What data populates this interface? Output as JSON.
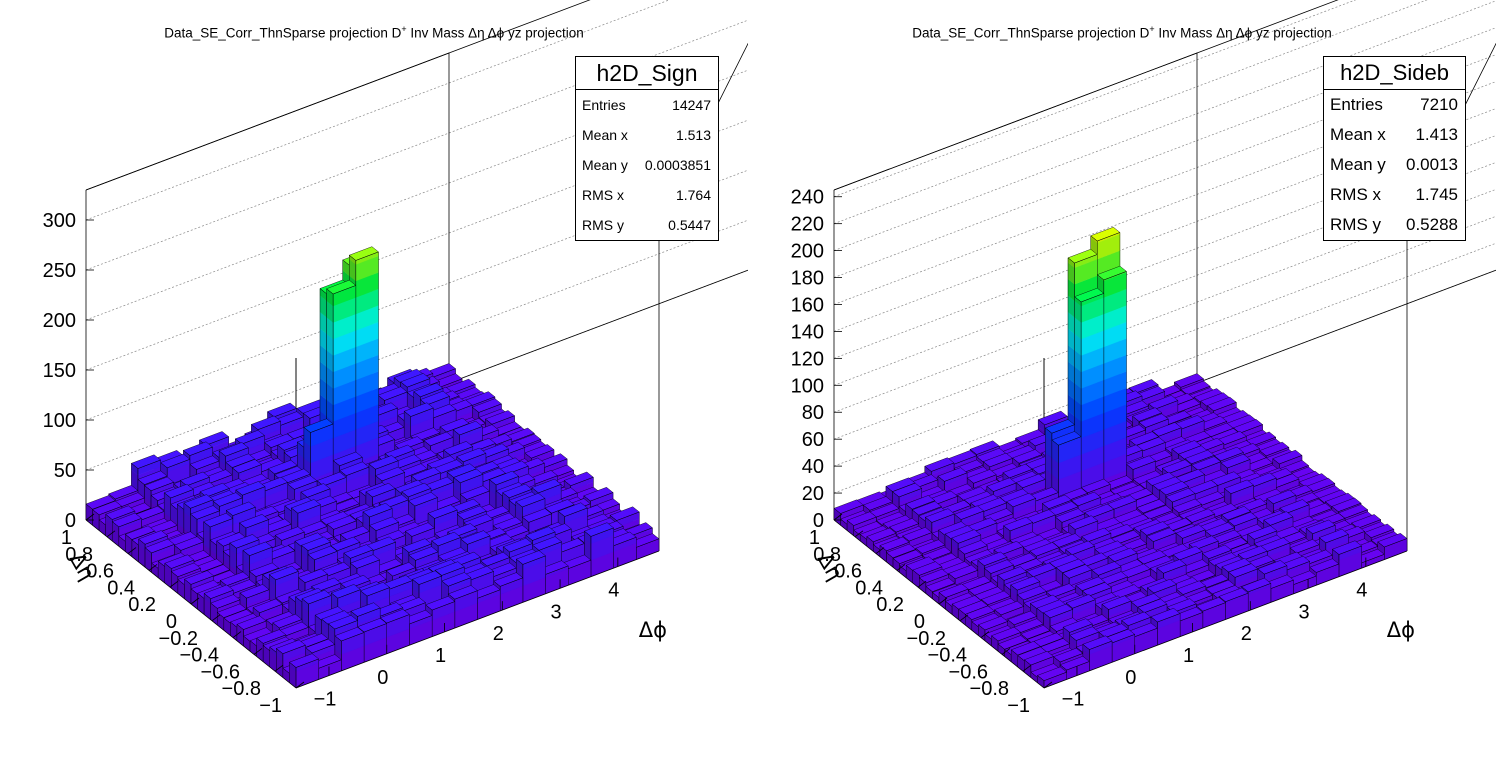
{
  "panels": [
    {
      "title_main": "Data_SE_Corr_ThnSparse projection  D",
      "title_sup": "+",
      "title_rest": " Inv Mass Δη Δϕ yz projection",
      "stats": {
        "name": "h2D_Sign",
        "rows": [
          {
            "label": "Entries",
            "value": "14247"
          },
          {
            "label": "Mean x",
            "value": "1.513"
          },
          {
            "label": "Mean y",
            "value": "0.0003851"
          },
          {
            "label": "RMS x",
            "value": "1.764"
          },
          {
            "label": "RMS y",
            "value": "0.5447"
          }
        ]
      }
    },
    {
      "title_main": "Data_SE_Corr_ThnSparse projection  D",
      "title_sup": "+",
      "title_rest": " Inv Mass Δη Δϕ yz projection",
      "stats": {
        "name": "h2D_Sideb",
        "rows": [
          {
            "label": "Entries",
            "value": "7210"
          },
          {
            "label": "Mean x",
            "value": "1.413"
          },
          {
            "label": "Mean y",
            "value": "0.0013"
          },
          {
            "label": "RMS x",
            "value": "1.745"
          },
          {
            "label": "RMS y",
            "value": "0.5288"
          }
        ]
      }
    }
  ],
  "chart_data": [
    {
      "type": "heatmap",
      "subtype": "lego",
      "title": "Data_SE_Corr_ThnSparse projection  D+ Inv Mass Δη Δϕ yz projection",
      "xlabel": "Δϕ",
      "ylabel": "Δη",
      "xlim": [
        -1.5708,
        4.7124
      ],
      "ylim": [
        -1,
        1
      ],
      "zlim": [
        0,
        330
      ],
      "z_ticks": [
        0,
        50,
        100,
        150,
        200,
        250,
        300
      ],
      "x_ticks": [
        -1,
        0,
        1,
        2,
        3,
        4
      ],
      "y_ticks": [
        -1,
        -0.8,
        -0.6,
        -0.4,
        -0.2,
        0,
        0.2,
        0.4,
        0.6,
        0.8,
        1
      ],
      "nx": 32,
      "ny": 16,
      "baseline": 30,
      "peak": {
        "x_center": 0.05,
        "y_center": 0.0,
        "values": [
          [
            0,
            0,
            205
          ],
          [
            0,
            1,
            225
          ],
          [
            1,
            0,
            210
          ],
          [
            1,
            1,
            235
          ],
          [
            0,
            -1,
            60
          ],
          [
            1,
            -1,
            80
          ],
          [
            -1,
            0,
            60
          ],
          [
            -1,
            1,
            50
          ]
        ]
      },
      "palette": "rainbow"
    },
    {
      "type": "heatmap",
      "subtype": "lego",
      "title": "Data_SE_Corr_ThnSparse projection  D+ Inv Mass Δη Δϕ yz projection",
      "xlabel": "Δϕ",
      "ylabel": "Δη",
      "xlim": [
        -1.5708,
        4.7124
      ],
      "ylim": [
        -1,
        1
      ],
      "zlim": [
        0,
        245
      ],
      "z_ticks": [
        0,
        20,
        40,
        60,
        80,
        100,
        120,
        140,
        160,
        180,
        200,
        220,
        240
      ],
      "x_ticks": [
        -1,
        0,
        1,
        2,
        3,
        4
      ],
      "y_ticks": [
        -1,
        -0.8,
        -0.6,
        -0.4,
        -0.2,
        0,
        0.2,
        0.4,
        0.6,
        0.8,
        1
      ],
      "nx": 32,
      "ny": 16,
      "baseline": 12,
      "peak": {
        "x_center": 0.05,
        "y_center": 0.0,
        "values": [
          [
            0,
            0,
            175
          ],
          [
            0,
            1,
            185
          ],
          [
            1,
            0,
            150
          ],
          [
            1,
            1,
            160
          ],
          [
            0,
            -1,
            55
          ],
          [
            1,
            -1,
            50
          ],
          [
            -1,
            0,
            40
          ],
          [
            -1,
            1,
            35
          ]
        ]
      },
      "palette": "rainbow"
    }
  ]
}
